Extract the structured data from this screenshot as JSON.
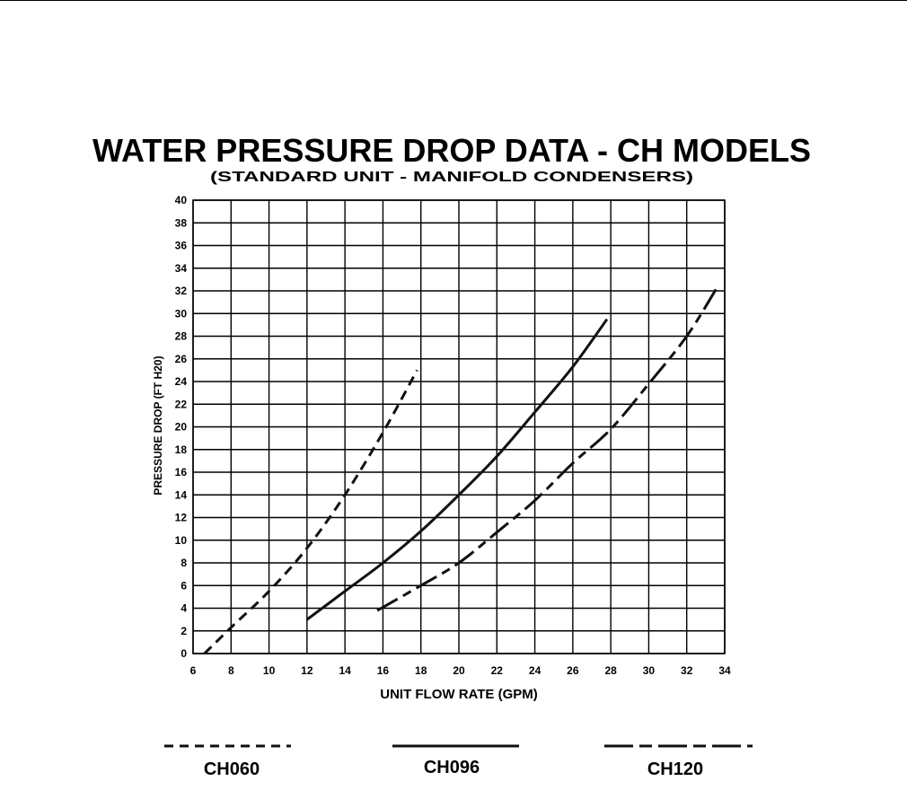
{
  "chart_data": {
    "type": "line",
    "title": "WATER PRESSURE DROP DATA - CH MODELS",
    "subtitle": "(STANDARD UNIT - MANIFOLD CONDENSERS)",
    "xlabel": "UNIT FLOW RATE (GPM)",
    "ylabel": "PRESSURE DROP (FT H20)",
    "xlim": [
      6,
      34
    ],
    "ylim": [
      0,
      40
    ],
    "x_ticks": [
      6,
      8,
      10,
      12,
      14,
      16,
      18,
      20,
      22,
      24,
      26,
      28,
      30,
      32,
      34
    ],
    "y_ticks": [
      0,
      2,
      4,
      6,
      8,
      10,
      12,
      14,
      16,
      18,
      20,
      22,
      24,
      26,
      28,
      30,
      32,
      34,
      36,
      38,
      40
    ],
    "grid": true,
    "legend_position": "bottom",
    "series": [
      {
        "name": "CH060",
        "line_style": "dashed",
        "color": "#111111",
        "x": [
          6.6,
          8,
          10,
          12,
          14,
          16,
          17.8
        ],
        "y": [
          0,
          2.3,
          5.5,
          9.3,
          14,
          19.5,
          25
        ]
      },
      {
        "name": "CH096",
        "line_style": "solid",
        "color": "#111111",
        "x": [
          12,
          14,
          16,
          18,
          20,
          22,
          24,
          26,
          27.8
        ],
        "y": [
          3,
          5.5,
          8,
          10.8,
          14,
          17.4,
          21.3,
          25.3,
          29.5
        ]
      },
      {
        "name": "CH120",
        "line_style": "dash-dot",
        "color": "#111111",
        "x": [
          15.7,
          18,
          20,
          22,
          24,
          26,
          28,
          30,
          32,
          33.6
        ],
        "y": [
          3.8,
          6,
          8,
          10.7,
          13.5,
          16.8,
          19.8,
          23.8,
          28,
          32.3
        ]
      }
    ]
  }
}
